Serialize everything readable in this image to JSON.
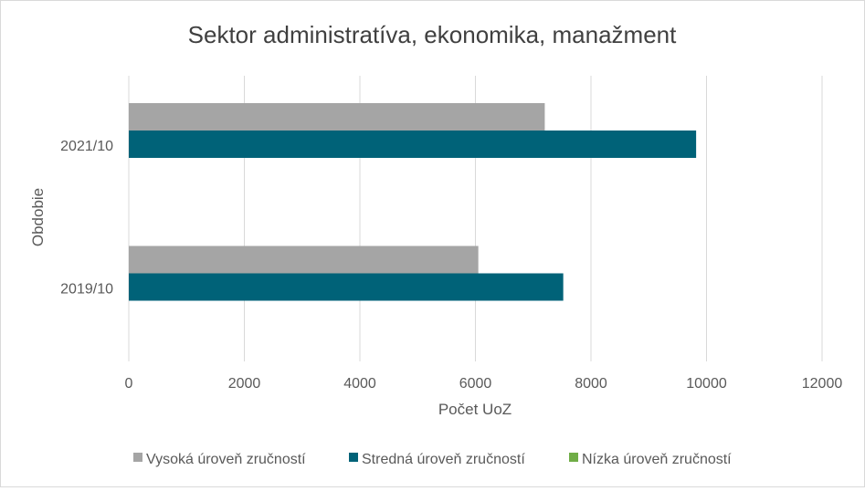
{
  "chart_data": {
    "type": "bar",
    "orientation": "horizontal",
    "title": "Sektor administratíva, ekonomika, manažment",
    "xlabel": "Počet UoZ",
    "ylabel": "Obdobie",
    "categories": [
      "2021/10",
      "2019/10"
    ],
    "xlim": [
      0,
      12000
    ],
    "xticks": [
      0,
      2000,
      4000,
      6000,
      8000,
      10000,
      12000
    ],
    "xtick_labels": [
      "0",
      "2000",
      "4000",
      "6000",
      "8000",
      "10000",
      "12000"
    ],
    "grid": true,
    "legend_position": "bottom",
    "series": [
      {
        "name": "Vysoká úroveň zručností",
        "color": "#a5a5a5",
        "values": [
          7200,
          6050
        ]
      },
      {
        "name": "Stredná úroveň zručností",
        "color": "#006278",
        "values": [
          9820,
          7520
        ]
      },
      {
        "name": "Nízka úroveň zručností",
        "color": "#70ad47",
        "values": [
          0,
          0
        ]
      }
    ]
  }
}
